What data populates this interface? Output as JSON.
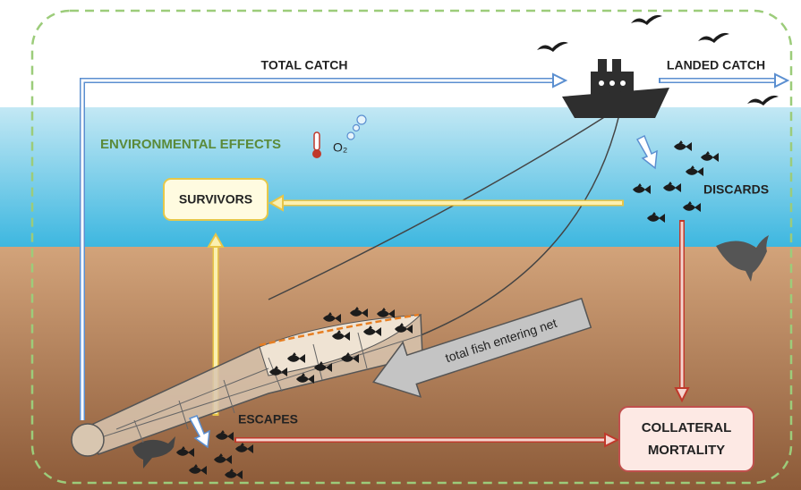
{
  "labels": {
    "total_catch": "TOTAL CATCH",
    "landed_catch": "LANDED CATCH",
    "environmental_effects": "ENVIRONMENTAL EFFECTS",
    "oxygen": "O₂",
    "survivors": "SURVIVORS",
    "discards": "DISCARDS",
    "escapes": "ESCAPES",
    "collateral_mortality": [
      "COLLATERAL",
      "MORTALITY"
    ],
    "total_fish_entering_net": "total fish entering net"
  }
}
